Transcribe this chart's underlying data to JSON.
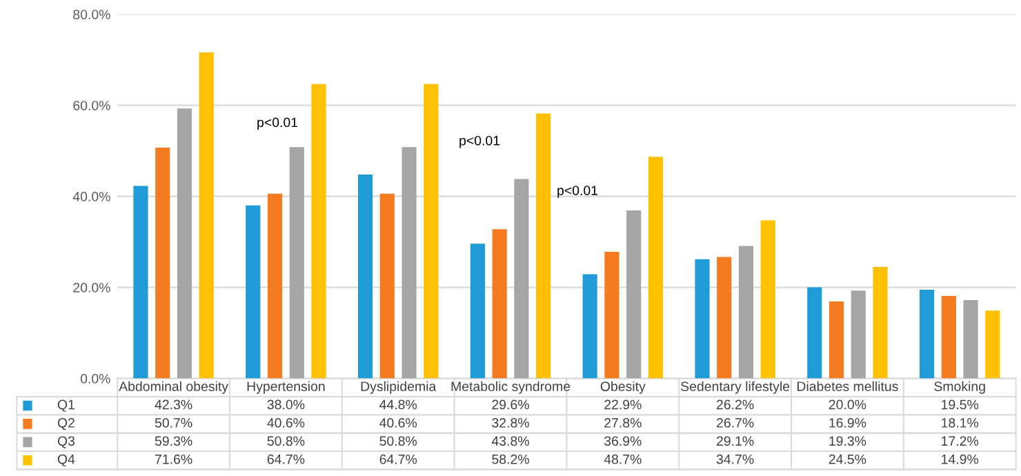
{
  "chart_data": {
    "type": "bar",
    "categories": [
      "Abdominal obesity",
      "Hypertension",
      "Dyslipidemia",
      "Metabolic syndrome",
      "Obesity",
      "Sedentary lifestyle",
      "Diabetes mellitus",
      "Smoking"
    ],
    "series": [
      {
        "name": "Q1",
        "color": "#1f9bd7",
        "values": [
          42.3,
          38.0,
          44.8,
          29.6,
          22.9,
          26.2,
          20.0,
          19.5
        ],
        "value_labels": [
          "42.3%",
          "38.0%",
          "44.8%",
          "29.6%",
          "22.9%",
          "26.2%",
          "20.0%",
          "19.5%"
        ]
      },
      {
        "name": "Q2",
        "color": "#f47b20",
        "values": [
          50.7,
          40.6,
          40.6,
          32.8,
          27.8,
          26.7,
          16.9,
          18.1
        ],
        "value_labels": [
          "50.7%",
          "40.6%",
          "40.6%",
          "32.8%",
          "27.8%",
          "26.7%",
          "16.9%",
          "18.1%"
        ]
      },
      {
        "name": "Q3",
        "color": "#a5a5a5",
        "values": [
          59.3,
          50.8,
          50.8,
          43.8,
          36.9,
          29.1,
          19.3,
          17.2
        ],
        "value_labels": [
          "59.3%",
          "50.8%",
          "50.8%",
          "43.8%",
          "36.9%",
          "29.1%",
          "19.3%",
          "17.2%"
        ]
      },
      {
        "name": "Q4",
        "color": "#ffc000",
        "values": [
          71.6,
          64.7,
          64.7,
          58.2,
          48.7,
          34.7,
          24.5,
          14.9
        ],
        "value_labels": [
          "71.6%",
          "64.7%",
          "64.7%",
          "58.2%",
          "48.7%",
          "34.7%",
          "24.5%",
          "14.9%"
        ]
      }
    ],
    "ylim": [
      0,
      80
    ],
    "yticks": [
      {
        "value": 0,
        "label": "0.0%"
      },
      {
        "value": 20,
        "label": "20.0%"
      },
      {
        "value": 40,
        "label": "40.0%"
      },
      {
        "value": 60,
        "label": "60.0%"
      },
      {
        "value": 80,
        "label": "80.0%"
      }
    ],
    "grid": "y",
    "legend": "bottom left",
    "annotations": [
      "p<0.01",
      "p<0.01",
      "p<0.01"
    ]
  }
}
